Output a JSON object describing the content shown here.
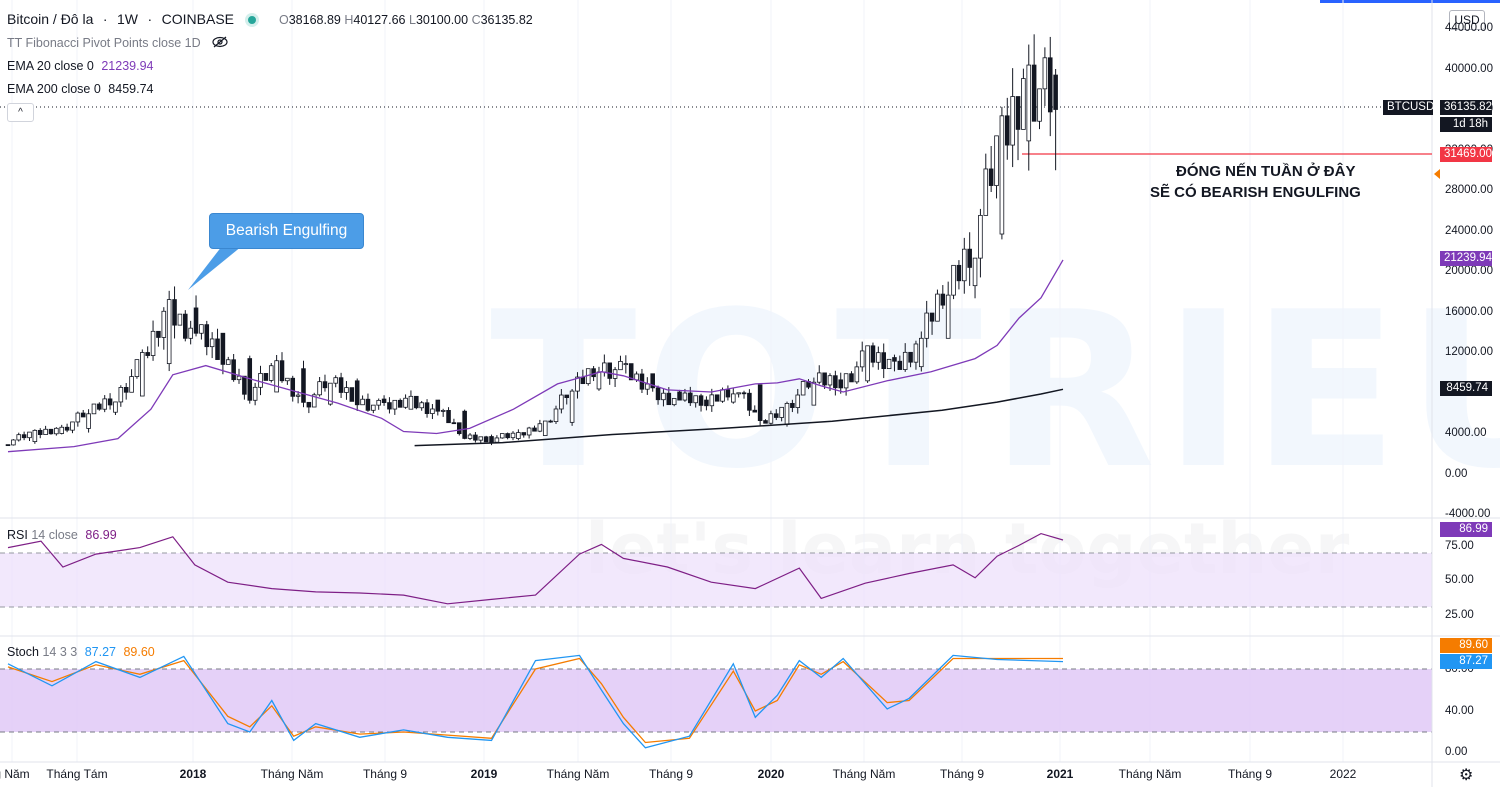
{
  "symbol": {
    "name": "Bitcoin / Đô la",
    "interval": "1W",
    "exchange": "COINBASE",
    "open_label": "O",
    "open": "38168.89",
    "high_label": "H",
    "high": "40127.66",
    "low_label": "L",
    "low": "30100.00",
    "close_label": "C",
    "close": "36135.82"
  },
  "indicators": {
    "fib": "TT Fibonacci Pivot Points close 1D",
    "ema20_label": "EMA 20 close 0",
    "ema20_value": "21239.94",
    "ema200_label": "EMA 200 close 0",
    "ema200_value": "8459.74",
    "rsi_label": "RSI",
    "rsi_params": "14 close",
    "rsi_value": "86.99",
    "stoch_label": "Stoch",
    "stoch_params": "14 3 3",
    "stoch_k": "87.27",
    "stoch_d": "89.60"
  },
  "currency_button": "USD",
  "price_axis": {
    "ticks": [
      "44000.00",
      "40000.00",
      "36000.00",
      "32000.00",
      "28000.00",
      "24000.00",
      "20000.00",
      "16000.00",
      "12000.00",
      "8000.00",
      "4000.00",
      "0.00",
      "-4000.00"
    ],
    "labels": {
      "btcusd_name": "BTCUSD",
      "btcusd_price": "36135.82",
      "countdown": "1d 18h",
      "line_price": "31469.00",
      "ema20": "21239.94",
      "ema200": "8459.74"
    },
    "colors": {
      "last": "#131722",
      "line": "#f23645",
      "ema20": "#7e3ab8",
      "ema200": "#131722"
    }
  },
  "rsi_axis": {
    "ticks": [
      "75.00",
      "50.00",
      "25.00"
    ],
    "value": "86.99",
    "color": "#7e3ab8"
  },
  "stoch_axis": {
    "ticks": [
      "80.00",
      "40.00",
      "0.00"
    ],
    "d_value": "89.60",
    "k_value": "87.27",
    "d_color": "#f57c00",
    "k_color": "#2196f3"
  },
  "time_axis": [
    {
      "label": "g Năm",
      "bold": false
    },
    {
      "label": "Tháng Tám",
      "bold": false
    },
    {
      "label": "2018",
      "bold": true
    },
    {
      "label": "Tháng Năm",
      "bold": false
    },
    {
      "label": "Tháng 9",
      "bold": false
    },
    {
      "label": "2019",
      "bold": true
    },
    {
      "label": "Tháng Năm",
      "bold": false
    },
    {
      "label": "Tháng 9",
      "bold": false
    },
    {
      "label": "2020",
      "bold": true
    },
    {
      "label": "Tháng Năm",
      "bold": false
    },
    {
      "label": "Tháng 9",
      "bold": false
    },
    {
      "label": "2021",
      "bold": true
    },
    {
      "label": "Tháng Năm",
      "bold": false
    },
    {
      "label": "Tháng 9",
      "bold": false
    },
    {
      "label": "2022",
      "bold": false
    }
  ],
  "annotations": {
    "callout": "Bearish Engulfing",
    "note_line1": "ĐÓNG NẾN TUẦN Ở ĐÂY",
    "note_line2": "SẼ CÓ BEARISH ENGULFING"
  },
  "watermark": {
    "brand": "TOTRIEU",
    "tagline": "let's learn together"
  },
  "chart_data": {
    "type": "candlestick",
    "y_range": [
      -4000,
      44000
    ],
    "candles_sampled": [
      [
        3000,
        3400,
        2700,
        3300
      ],
      [
        3300,
        4200,
        3100,
        4100
      ],
      [
        4100,
        4800,
        3900,
        4600
      ],
      [
        4600,
        6400,
        4500,
        6200
      ],
      [
        6200,
        8000,
        5800,
        7800
      ],
      [
        7800,
        11500,
        7000,
        11000
      ],
      [
        11000,
        17000,
        10500,
        16500
      ],
      [
        16500,
        19600,
        13000,
        14000
      ],
      [
        14000,
        17200,
        11000,
        11500
      ],
      [
        11500,
        12000,
        7000,
        8200
      ],
      [
        8200,
        11800,
        8000,
        10500
      ],
      [
        10500,
        11000,
        6500,
        7000
      ],
      [
        7000,
        9900,
        6800,
        9300
      ],
      [
        9300,
        9400,
        7000,
        7500
      ],
      [
        7500,
        8500,
        6100,
        6500
      ],
      [
        6500,
        7800,
        6200,
        7400
      ],
      [
        7400,
        7500,
        6000,
        6300
      ],
      [
        6300,
        6700,
        3200,
        3800
      ],
      [
        3800,
        4200,
        3300,
        3600
      ],
      [
        3600,
        4100,
        3400,
        3900
      ],
      [
        3900,
        5300,
        3900,
        5200
      ],
      [
        5200,
        8800,
        5100,
        8500
      ],
      [
        8500,
        13800,
        8000,
        11000
      ],
      [
        11000,
        12300,
        9000,
        10000
      ],
      [
        10000,
        10900,
        7700,
        8200
      ],
      [
        8200,
        9200,
        6600,
        7400
      ],
      [
        7400,
        7600,
        6400,
        7200
      ],
      [
        7200,
        10400,
        6900,
        8900
      ],
      [
        8900,
        9500,
        3800,
        5000
      ],
      [
        5000,
        7200,
        4900,
        6900
      ],
      [
        6900,
        9900,
        6700,
        9400
      ],
      [
        9400,
        10500,
        8800,
        9300
      ],
      [
        9300,
        12400,
        9100,
        11600
      ],
      [
        11600,
        12200,
        10200,
        10700
      ],
      [
        10700,
        13800,
        10600,
        13500
      ],
      [
        13500,
        19900,
        13200,
        18700
      ],
      [
        18700,
        24300,
        17600,
        23800
      ],
      [
        23800,
        34800,
        23500,
        33000
      ],
      [
        33000,
        41900,
        28500,
        39500
      ],
      [
        39500,
        40100,
        30100,
        36100
      ]
    ],
    "ema20": [
      [
        0,
        2300
      ],
      [
        6,
        2800
      ],
      [
        10,
        3600
      ],
      [
        13,
        6500
      ],
      [
        15,
        9900
      ],
      [
        18,
        10800
      ],
      [
        22,
        9500
      ],
      [
        26,
        8300
      ],
      [
        30,
        7100
      ],
      [
        34,
        5600
      ],
      [
        36,
        4300
      ],
      [
        39,
        4100
      ],
      [
        42,
        4600
      ],
      [
        46,
        6500
      ],
      [
        50,
        9000
      ],
      [
        54,
        10200
      ],
      [
        56,
        9800
      ],
      [
        60,
        8400
      ],
      [
        64,
        8200
      ],
      [
        68,
        9000
      ],
      [
        70,
        9100
      ],
      [
        72,
        9500
      ],
      [
        74,
        8800
      ],
      [
        76,
        8200
      ],
      [
        80,
        9300
      ],
      [
        84,
        10200
      ],
      [
        88,
        11500
      ],
      [
        90,
        12800
      ],
      [
        92,
        15500
      ],
      [
        94,
        17500
      ],
      [
        96,
        21240
      ]
    ],
    "ema200": [
      [
        37,
        2900
      ],
      [
        45,
        3200
      ],
      [
        55,
        4000
      ],
      [
        65,
        4600
      ],
      [
        75,
        5300
      ],
      [
        85,
        6400
      ],
      [
        90,
        7200
      ],
      [
        94,
        8000
      ],
      [
        96,
        8460
      ]
    ],
    "rsi": [
      [
        0,
        80
      ],
      [
        3,
        86
      ],
      [
        5,
        62
      ],
      [
        8,
        74
      ],
      [
        12,
        80
      ],
      [
        15,
        90
      ],
      [
        17,
        64
      ],
      [
        20,
        48
      ],
      [
        24,
        42
      ],
      [
        28,
        39
      ],
      [
        32,
        38
      ],
      [
        36,
        36
      ],
      [
        40,
        28
      ],
      [
        44,
        32
      ],
      [
        48,
        36
      ],
      [
        52,
        74
      ],
      [
        54,
        83
      ],
      [
        56,
        70
      ],
      [
        60,
        62
      ],
      [
        64,
        48
      ],
      [
        68,
        42
      ],
      [
        72,
        61
      ],
      [
        74,
        33
      ],
      [
        78,
        47
      ],
      [
        82,
        56
      ],
      [
        86,
        64
      ],
      [
        88,
        52
      ],
      [
        90,
        72
      ],
      [
        92,
        82
      ],
      [
        94,
        93
      ],
      [
        96,
        87
      ]
    ],
    "stoch_k": [
      [
        0,
        85
      ],
      [
        4,
        64
      ],
      [
        8,
        87
      ],
      [
        12,
        72
      ],
      [
        16,
        92
      ],
      [
        20,
        28
      ],
      [
        22,
        20
      ],
      [
        24,
        50
      ],
      [
        26,
        12
      ],
      [
        28,
        28
      ],
      [
        32,
        15
      ],
      [
        36,
        22
      ],
      [
        40,
        15
      ],
      [
        44,
        12
      ],
      [
        48,
        88
      ],
      [
        52,
        93
      ],
      [
        54,
        60
      ],
      [
        56,
        28
      ],
      [
        58,
        5
      ],
      [
        62,
        16
      ],
      [
        66,
        85
      ],
      [
        68,
        34
      ],
      [
        70,
        55
      ],
      [
        72,
        88
      ],
      [
        74,
        72
      ],
      [
        76,
        90
      ],
      [
        80,
        42
      ],
      [
        82,
        52
      ],
      [
        86,
        93
      ],
      [
        90,
        89
      ],
      [
        96,
        87
      ]
    ],
    "stoch_d": [
      [
        0,
        82
      ],
      [
        4,
        68
      ],
      [
        8,
        84
      ],
      [
        12,
        75
      ],
      [
        16,
        88
      ],
      [
        20,
        35
      ],
      [
        22,
        25
      ],
      [
        24,
        45
      ],
      [
        26,
        16
      ],
      [
        28,
        25
      ],
      [
        32,
        18
      ],
      [
        36,
        20
      ],
      [
        40,
        17
      ],
      [
        44,
        14
      ],
      [
        48,
        80
      ],
      [
        52,
        90
      ],
      [
        54,
        66
      ],
      [
        56,
        34
      ],
      [
        58,
        10
      ],
      [
        62,
        14
      ],
      [
        66,
        78
      ],
      [
        68,
        40
      ],
      [
        70,
        50
      ],
      [
        72,
        84
      ],
      [
        74,
        75
      ],
      [
        76,
        87
      ],
      [
        80,
        48
      ],
      [
        82,
        50
      ],
      [
        86,
        90
      ],
      [
        90,
        90
      ],
      [
        96,
        90
      ]
    ]
  }
}
